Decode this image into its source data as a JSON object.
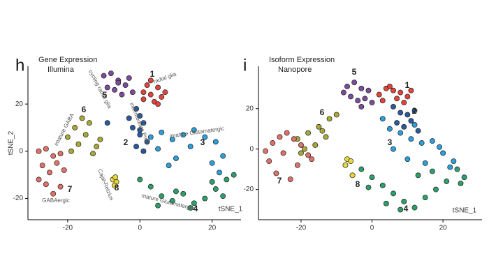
{
  "chart_data": [
    {
      "type": "scatter",
      "panel_label": "h",
      "title": "Gene Expression",
      "subtitle": "Illumina",
      "x_label": "tSNE_1",
      "y_label": "tSNE_2",
      "xlim": [
        -31,
        28
      ],
      "ylim": [
        -29,
        36
      ],
      "xticks": [
        -20,
        0,
        20
      ],
      "yticks": [
        -20,
        0,
        20
      ],
      "series": [
        {
          "name": "1",
          "color": "#e0443c",
          "x": [
            1,
            3,
            5,
            6,
            2,
            4,
            7,
            3,
            5,
            1
          ],
          "y": [
            22,
            24,
            27,
            23,
            28,
            21,
            25,
            30,
            20,
            25
          ]
        },
        {
          "name": "2",
          "color": "#2a5a9a",
          "x": [
            -1,
            0,
            1,
            -2,
            0,
            2,
            -1,
            1,
            -3,
            0,
            -9
          ],
          "y": [
            18,
            15,
            12,
            10,
            7,
            4,
            2,
            0,
            14,
            9,
            12
          ]
        },
        {
          "name": "3",
          "color": "#2b9fd8",
          "x": [
            3,
            6,
            9,
            12,
            15,
            18,
            21,
            23,
            5,
            10,
            14,
            20,
            22,
            8
          ],
          "y": [
            6,
            8,
            5,
            7,
            9,
            6,
            4,
            -2,
            1,
            -3,
            2,
            -5,
            -9,
            -6
          ]
        },
        {
          "name": "4",
          "color": "#2e9e6a",
          "x": [
            0,
            3,
            6,
            9,
            12,
            15,
            18,
            21,
            24,
            26,
            5,
            10,
            14,
            20,
            23
          ],
          "y": [
            -12,
            -15,
            -19,
            -21,
            -18,
            -22,
            -20,
            -16,
            -12,
            -10,
            -23,
            -17,
            -24,
            -13,
            -19
          ]
        },
        {
          "name": "5",
          "color": "#7a4c9a",
          "x": [
            -10,
            -8,
            -6,
            -4,
            -3,
            -9,
            -7,
            -5,
            -2,
            -6
          ],
          "y": [
            32,
            33,
            30,
            28,
            31,
            27,
            26,
            24,
            25,
            29
          ]
        },
        {
          "name": "6",
          "color": "#a8a838",
          "x": [
            -20,
            -18,
            -16,
            -14,
            -12,
            -19,
            -15,
            -13,
            -17,
            -11
          ],
          "y": [
            6,
            10,
            14,
            12,
            2,
            0,
            7,
            -1,
            3,
            5
          ]
        },
        {
          "name": "7",
          "color": "#e0706a",
          "x": [
            -28,
            -26,
            -24,
            -22,
            -27,
            -25,
            -23,
            -21,
            -26,
            -24,
            -28,
            -22
          ],
          "y": [
            0,
            1,
            -2,
            -1,
            -6,
            -9,
            -5,
            -8,
            -14,
            -18,
            -12,
            -15
          ]
        },
        {
          "name": "8",
          "color": "#e8d83a",
          "x": [
            -7.5,
            -6.5,
            -7,
            -6.8
          ],
          "y": [
            -12,
            -13,
            -14.5,
            -11
          ]
        }
      ],
      "annotations": [
        "radial glia",
        "cycling radial glia",
        "intermediate Prog.",
        "imature Glutamatergic",
        "mature Glutamatergic",
        "imature GABA",
        "GABAergic",
        "Cajal-Retzius"
      ]
    },
    {
      "type": "scatter",
      "panel_label": "i",
      "title": "Isoform Expression",
      "subtitle": "Nanopore",
      "x_label": "tSNE_1",
      "xlim": [
        -32,
        31
      ],
      "ylim": [
        -35,
        41
      ],
      "xticks": [
        -20,
        0,
        20
      ],
      "yticks": [
        -20,
        0,
        20
      ],
      "series": [
        {
          "name": "1",
          "color": "#e0443c",
          "x": [
            2,
            4,
            6,
            8,
            10,
            3,
            7,
            9,
            5,
            11
          ],
          "y": [
            27,
            30,
            29,
            28,
            26,
            24,
            25,
            23,
            31,
            29
          ]
        },
        {
          "name": "2",
          "color": "#2a5a9a",
          "x": [
            6,
            8,
            10,
            12,
            7,
            9,
            11,
            13
          ],
          "y": [
            21,
            18,
            17,
            19,
            13,
            11,
            14,
            9
          ]
        },
        {
          "name": "3",
          "color": "#2b9fd8",
          "x": [
            3,
            5,
            8,
            11,
            14,
            17,
            20,
            23,
            6,
            10,
            15,
            19,
            22,
            12
          ],
          "y": [
            15,
            10,
            8,
            5,
            3,
            4,
            -2,
            -6,
            0,
            -5,
            -7,
            1,
            -9,
            12
          ]
        },
        {
          "name": "4",
          "color": "#2e9e6a",
          "x": [
            -3,
            0,
            3,
            6,
            9,
            12,
            15,
            18,
            21,
            -1,
            4,
            8,
            13,
            17,
            24,
            26,
            25
          ],
          "y": [
            -10,
            -14,
            -18,
            -22,
            -26,
            -29,
            -24,
            -20,
            -16,
            -19,
            -27,
            -30,
            -13,
            -11,
            -10,
            -14,
            -17
          ]
        },
        {
          "name": "5",
          "color": "#7a4c9a",
          "x": [
            -7,
            -5,
            -3,
            -1,
            -6,
            -4,
            -2,
            0,
            -8,
            -3
          ],
          "y": [
            31,
            33,
            30,
            29,
            26,
            24,
            25,
            23,
            28,
            21
          ]
        },
        {
          "name": "6",
          "color": "#a8a838",
          "x": [
            -21,
            -18,
            -15,
            -12,
            -10,
            -19,
            -16,
            -13,
            -20,
            -14
          ],
          "y": [
            5,
            8,
            11,
            15,
            17,
            0,
            2,
            6,
            -2,
            9
          ]
        },
        {
          "name": "7",
          "color": "#e0706a",
          "x": [
            -30,
            -28,
            -26,
            -24,
            -22,
            -20,
            -18,
            -29,
            -25,
            -21,
            -27,
            -23,
            -17
          ],
          "y": [
            -1,
            3,
            6,
            8,
            5,
            2,
            -3,
            -6,
            -2,
            -8,
            -12,
            -15,
            -5
          ]
        },
        {
          "name": "8",
          "color": "#e8d83a",
          "x": [
            -7,
            -6,
            -5.5,
            -7.5
          ],
          "y": [
            -5,
            -6,
            -13,
            -8
          ]
        }
      ]
    }
  ]
}
